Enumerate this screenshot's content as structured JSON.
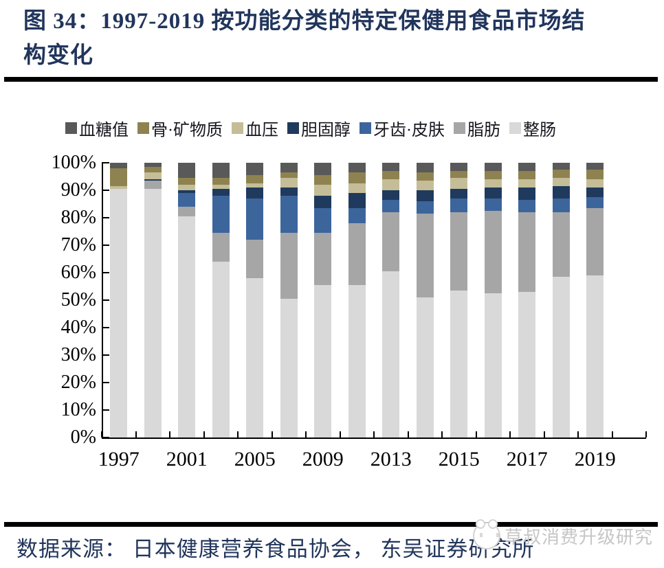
{
  "header": {
    "title_line1": "图 34：1997-2019 按功能分类的特定保健用食品市场结",
    "title_line2": "构变化"
  },
  "footer": {
    "source": "数据来源： 日本健康营养食品协会， 东吴证券研究所",
    "watermark": "草叔消费升级研究"
  },
  "chart_data": {
    "type": "bar",
    "subtype": "stacked-100-percent",
    "title": "图 34：1997-2019 按功能分类的特定保健用食品市场结构变化",
    "xlabel": "",
    "ylabel": "",
    "ylim": [
      0,
      100
    ],
    "grid": false,
    "legend_position": "top",
    "categories": [
      "1997",
      "1999",
      "2001",
      "2003",
      "2005",
      "2007",
      "2009",
      "2011",
      "2013",
      "2014",
      "2015",
      "2016",
      "2017",
      "2018",
      "2019"
    ],
    "x_tick_labels": [
      "1997",
      "2001",
      "2005",
      "2009",
      "2013",
      "2015",
      "2017",
      "2019"
    ],
    "x_tick_label_category_indices": [
      0,
      2,
      4,
      6,
      8,
      10,
      12,
      14
    ],
    "y_tick_labels": [
      "0%",
      "10%",
      "20%",
      "30%",
      "40%",
      "50%",
      "60%",
      "70%",
      "80%",
      "90%",
      "100%"
    ],
    "unit": "percent of market",
    "series": [
      {
        "name": "血糖值",
        "color": "#595959",
        "values": [
          2,
          1.5,
          5.5,
          5.5,
          4.5,
          3.5,
          4.5,
          3.5,
          3,
          3.5,
          3,
          3,
          3,
          2.5,
          2.5
        ]
      },
      {
        "name": "骨·矿物质",
        "color": "#8e8350",
        "values": [
          6.5,
          2,
          2.5,
          2.5,
          3,
          2,
          3.5,
          4,
          3,
          3,
          2.5,
          3,
          3,
          3,
          3.5
        ]
      },
      {
        "name": "血压",
        "color": "#c4bd97",
        "values": [
          1,
          2.5,
          2,
          1.5,
          1.5,
          3.5,
          4,
          3.5,
          4,
          3.5,
          4,
          3,
          3,
          3,
          3
        ]
      },
      {
        "name": "胆固醇",
        "color": "#1f3a5d",
        "values": [
          0,
          0.5,
          1,
          2.5,
          4,
          3,
          4.5,
          5.5,
          3.5,
          4,
          3.5,
          4,
          4.5,
          4.5,
          3.5
        ]
      },
      {
        "name": "牙齿·皮肤",
        "color": "#3c659c",
        "values": [
          0,
          0,
          5,
          13.5,
          15,
          13.5,
          9,
          5.5,
          4.5,
          4.5,
          5,
          4.5,
          4.5,
          5,
          4
        ]
      },
      {
        "name": "脂肪",
        "color": "#a6a6a6",
        "values": [
          0,
          3,
          3.5,
          10.5,
          14,
          24,
          19,
          22.5,
          21.5,
          30.5,
          28.5,
          30,
          29,
          23.5,
          24.5
        ]
      },
      {
        "name": "整肠",
        "color": "#d9d9d9",
        "values": [
          90.5,
          90.5,
          80.5,
          64,
          58,
          50.5,
          55.5,
          55.5,
          60.5,
          51,
          53.5,
          52.5,
          53,
          58.5,
          59
        ]
      }
    ]
  }
}
